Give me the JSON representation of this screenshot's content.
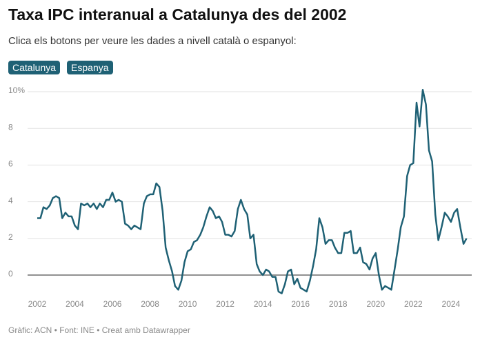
{
  "chart_data": {
    "type": "line",
    "title": "Taxa IPC interanual a Catalunya des del 2002",
    "subtitle": "Clica els botons per veure les dades a nivell català o espanyol:",
    "color": "#1f6175",
    "x": [
      2002,
      2002.17,
      2002.33,
      2002.5,
      2002.67,
      2002.83,
      2003,
      2003.17,
      2003.33,
      2003.5,
      2003.67,
      2003.83,
      2004,
      2004.17,
      2004.33,
      2004.5,
      2004.67,
      2004.83,
      2005,
      2005.17,
      2005.33,
      2005.5,
      2005.67,
      2005.83,
      2006,
      2006.17,
      2006.33,
      2006.5,
      2006.67,
      2006.83,
      2007,
      2007.17,
      2007.33,
      2007.5,
      2007.67,
      2007.83,
      2008,
      2008.17,
      2008.33,
      2008.5,
      2008.67,
      2008.83,
      2009,
      2009.17,
      2009.33,
      2009.5,
      2009.67,
      2009.83,
      2010,
      2010.17,
      2010.33,
      2010.5,
      2010.67,
      2010.83,
      2011,
      2011.17,
      2011.33,
      2011.5,
      2011.67,
      2011.83,
      2012,
      2012.17,
      2012.33,
      2012.5,
      2012.67,
      2012.83,
      2013,
      2013.17,
      2013.33,
      2013.5,
      2013.67,
      2013.83,
      2014,
      2014.17,
      2014.33,
      2014.5,
      2014.67,
      2014.83,
      2015,
      2015.17,
      2015.33,
      2015.5,
      2015.67,
      2015.83,
      2016,
      2016.17,
      2016.33,
      2016.5,
      2016.67,
      2016.83,
      2017,
      2017.17,
      2017.33,
      2017.5,
      2017.67,
      2017.83,
      2018,
      2018.17,
      2018.33,
      2018.5,
      2018.67,
      2018.83,
      2019,
      2019.17,
      2019.33,
      2019.5,
      2019.67,
      2019.83,
      2020,
      2020.17,
      2020.33,
      2020.5,
      2020.67,
      2020.83,
      2021,
      2021.17,
      2021.33,
      2021.5,
      2021.67,
      2021.83,
      2022,
      2022.17,
      2022.33,
      2022.5,
      2022.67,
      2022.83,
      2023,
      2023.17,
      2023.33,
      2023.5,
      2023.67,
      2023.83,
      2024,
      2024.17,
      2024.33,
      2024.5,
      2024.67,
      2024.83
    ],
    "values": [
      3.1,
      3.1,
      3.7,
      3.6,
      3.8,
      4.2,
      4.3,
      4.2,
      3.1,
      3.4,
      3.2,
      3.2,
      2.7,
      2.5,
      3.9,
      3.8,
      3.9,
      3.7,
      3.9,
      3.6,
      3.9,
      3.7,
      4.1,
      4.1,
      4.5,
      4.0,
      4.1,
      4.0,
      2.8,
      2.7,
      2.5,
      2.7,
      2.6,
      2.5,
      3.9,
      4.3,
      4.4,
      4.4,
      5.0,
      4.8,
      3.5,
      1.5,
      0.8,
      0.2,
      -0.6,
      -0.8,
      -0.3,
      0.7,
      1.3,
      1.4,
      1.8,
      1.9,
      2.2,
      2.6,
      3.2,
      3.7,
      3.5,
      3.1,
      3.2,
      2.9,
      2.2,
      2.2,
      2.1,
      2.4,
      3.6,
      4.1,
      3.6,
      3.3,
      2.0,
      2.2,
      0.6,
      0.2,
      0.0,
      0.3,
      0.2,
      -0.1,
      -0.1,
      -0.9,
      -1.0,
      -0.5,
      0.2,
      0.3,
      -0.5,
      -0.2,
      -0.7,
      -0.8,
      -0.9,
      -0.3,
      0.5,
      1.4,
      3.1,
      2.6,
      1.7,
      1.9,
      1.9,
      1.5,
      1.2,
      1.2,
      2.3,
      2.3,
      2.4,
      1.2,
      1.2,
      1.5,
      0.7,
      0.6,
      0.3,
      0.9,
      1.2,
      0.0,
      -0.8,
      -0.6,
      -0.7,
      -0.8,
      0.3,
      1.4,
      2.6,
      3.2,
      5.4,
      6.0,
      6.1,
      9.4,
      8.1,
      10.1,
      9.3,
      6.8,
      6.2,
      3.3,
      1.9,
      2.6,
      3.4,
      3.2,
      2.9,
      3.4,
      3.6,
      2.6,
      1.7,
      2.0
    ],
    "xlim": [
      2001.8,
      2025.2
    ],
    "xticks": [
      2002,
      2004,
      2006,
      2008,
      2010,
      2012,
      2014,
      2016,
      2018,
      2020,
      2022,
      2024
    ],
    "ylim": [
      -1.2,
      10.5
    ],
    "yticks": [
      0,
      2,
      4,
      6,
      8,
      {
        "value": 10,
        "label": "10%"
      }
    ],
    "grid": true
  },
  "controls": {
    "buttons": [
      "Catalunya",
      "Espanya"
    ]
  },
  "footer": "Gràfic: ACN • Font: INE • Creat amb Datawrapper"
}
